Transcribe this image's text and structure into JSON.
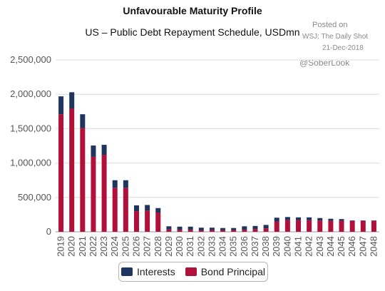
{
  "header": {
    "title": "Unfavourable Maturity Profile",
    "subtitle": "US – Public Debt Repayment Schedule, USDmn",
    "posted": "Posted on",
    "source": "WSJ: The Daily Shot",
    "date": "21-Dec-2018",
    "handle": "@SoberLook"
  },
  "colors": {
    "interests": "#1f3560",
    "principal": "#b0103a",
    "grid": "#dcdcdc"
  },
  "chart_data": {
    "type": "bar",
    "stacked": true,
    "categories": [
      "2019",
      "2020",
      "2021",
      "2022",
      "2023",
      "2024",
      "2025",
      "2026",
      "2027",
      "2028",
      "2029",
      "2030",
      "2031",
      "2032",
      "2033",
      "2034",
      "2035",
      "2036",
      "2037",
      "2038",
      "2039",
      "2040",
      "2041",
      "2042",
      "2043",
      "2044",
      "2045",
      "2046",
      "2047",
      "2048"
    ],
    "series": [
      {
        "name": "Bond Principal",
        "values": [
          1710000,
          1790000,
          1510000,
          1090000,
          1120000,
          640000,
          640000,
          300000,
          310000,
          280000,
          35000,
          30000,
          30000,
          20000,
          25000,
          25000,
          25000,
          30000,
          40000,
          50000,
          150000,
          170000,
          170000,
          170000,
          165000,
          160000,
          160000,
          160000,
          160000,
          160000
        ]
      },
      {
        "name": "Interests",
        "values": [
          260000,
          240000,
          200000,
          165000,
          145000,
          110000,
          110000,
          85000,
          80000,
          65000,
          45000,
          45000,
          45000,
          40000,
          35000,
          30000,
          30000,
          50000,
          45000,
          50000,
          55000,
          45000,
          40000,
          40000,
          35000,
          30000,
          25000,
          5000,
          5000,
          5000
        ]
      }
    ],
    "yticks": [
      "0",
      "500,000",
      "1,000,000",
      "1,500,000",
      "2,000,000",
      "2,500,000"
    ],
    "ylim": [
      0,
      2500000
    ],
    "grid": true,
    "legend": "bottom-center"
  },
  "legend": {
    "interests_label": "Interests",
    "principal_label": "Bond Principal"
  }
}
